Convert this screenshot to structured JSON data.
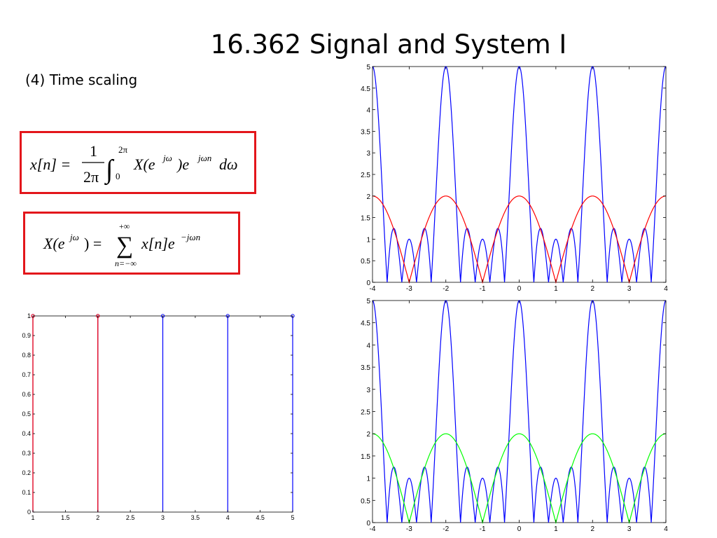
{
  "slide": {
    "title": "16.362 Signal and System I",
    "subtitle": "(4) Time scaling"
  },
  "equations": {
    "synthesis": {
      "lhs": "x[n] =",
      "frac_num": "1",
      "frac_den": "2π",
      "int_upper": "2π",
      "int_lower": "0",
      "integrand": "X(e",
      "exp1": "jω",
      "mid": ")e",
      "exp2": "jωn",
      "end": "dω"
    },
    "analysis": {
      "lhs": "X(e",
      "lhs_exp": "jω",
      "eq": ") =",
      "sum_upper": "+∞",
      "sum_lower": "n=−∞",
      "body": "x[n]e",
      "body_exp": "−jωn"
    }
  },
  "chart_data": [
    {
      "type": "line",
      "title": "",
      "xlabel": "",
      "ylabel": "",
      "xlim": [
        -4,
        4
      ],
      "ylim": [
        0,
        5
      ],
      "xticks": [
        "-4",
        "-3",
        "-2",
        "-1",
        "0",
        "1",
        "2",
        "3",
        "4"
      ],
      "yticks": [
        "0",
        "0.5",
        "1",
        "1.5",
        "2",
        "2.5",
        "3",
        "3.5",
        "4",
        "4.5",
        "5"
      ],
      "grid": false,
      "series": [
        {
          "color": "#0000ff",
          "function": "abs_dirichlet",
          "N": 5,
          "omega_scale": 3.14159,
          "description_in_units": "period 2"
        },
        {
          "color": "#ff0000",
          "function": "abs_dirichlet",
          "N": 2,
          "omega_scale": 3.14159
        }
      ]
    },
    {
      "type": "line",
      "title": "",
      "xlabel": "",
      "ylabel": "",
      "xlim": [
        -4,
        4
      ],
      "ylim": [
        0,
        5
      ],
      "xticks": [
        "-4",
        "-3",
        "-2",
        "-1",
        "0",
        "1",
        "2",
        "3",
        "4"
      ],
      "yticks": [
        "0",
        "0.5",
        "1",
        "1.5",
        "2",
        "2.5",
        "3",
        "3.5",
        "4",
        "4.5",
        "5"
      ],
      "grid": false,
      "series": [
        {
          "color": "#0000ff",
          "function": "abs_dirichlet",
          "N": 5,
          "omega_scale": 3.14159
        },
        {
          "color": "#00ff00",
          "function": "abs_dirichlet",
          "N": 2,
          "omega_scale": 3.14159
        }
      ]
    },
    {
      "type": "stem",
      "title": "",
      "xlabel": "",
      "ylabel": "",
      "xlim": [
        1,
        5
      ],
      "ylim": [
        0,
        1
      ],
      "xticks": [
        "1",
        "1.5",
        "2",
        "2.5",
        "3",
        "3.5",
        "4",
        "4.5",
        "5"
      ],
      "yticks": [
        "0",
        "0.1",
        "0.2",
        "0.3",
        "0.4",
        "0.5",
        "0.6",
        "0.7",
        "0.8",
        "0.9",
        "1"
      ],
      "grid": false,
      "series": [
        {
          "color": "#0000ff",
          "x": [
            1,
            2,
            3,
            4,
            5
          ],
          "y": [
            1,
            1,
            1,
            1,
            1
          ]
        },
        {
          "color": "#ff0000",
          "x": [
            1,
            2
          ],
          "y": [
            1,
            1
          ]
        }
      ]
    }
  ]
}
